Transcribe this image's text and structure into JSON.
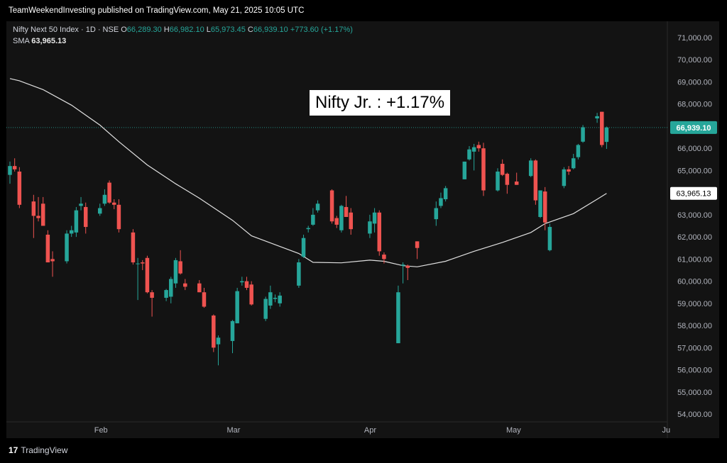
{
  "header": {
    "published": "TeamWeekendInvesting published on TradingView.com, May 21, 2025 10:05 UTC"
  },
  "legend": {
    "symbol": "Nifty Next 50 Index · 1D · NSE",
    "o_label": "O",
    "o_value": "66,289.30",
    "h_label": "H",
    "h_value": "66,982.10",
    "l_label": "L",
    "l_value": "65,973.45",
    "c_label": "C",
    "c_value": "66,939.10",
    "change": "+773.60 (+1.17%)",
    "sma_label": "SMA",
    "sma_value": "63,965.13"
  },
  "annotation": "Nifty Jr. : +1.17%",
  "footer": {
    "brand": "TradingView",
    "logo_glyph": "17"
  },
  "colors": {
    "up": "#26a69a",
    "down": "#ef5350",
    "sma": "#e0e0e0",
    "background": "#131313",
    "price_label_bg": "#26a69a"
  },
  "chart_data": {
    "type": "candlestick",
    "title": "Nifty Next 50 Index · 1D · NSE",
    "x_tick_labels": [
      "Feb",
      "Mar",
      "Apr",
      "May",
      "Ju"
    ],
    "y_tick_labels": [
      "71,000.00",
      "70,000.00",
      "69,000.00",
      "68,000.00",
      "67,000.00",
      "66,000.00",
      "65,000.00",
      "64,000.00",
      "63,000.00",
      "62,000.00",
      "61,000.00",
      "60,000.00",
      "59,000.00",
      "58,000.00",
      "57,000.00",
      "56,000.00",
      "55,000.00",
      "54,000.00"
    ],
    "ylim": [
      53600,
      71500
    ],
    "grid": false,
    "last_price": 66939.1,
    "last_price_label": "66,939.10",
    "sma_last": 63965.13,
    "sma_last_label": "63,965.13",
    "candles": [
      {
        "date": "2025-01-15",
        "o": 64800,
        "h": 65400,
        "l": 64400,
        "c": 65200
      },
      {
        "date": "2025-01-16",
        "o": 65200,
        "h": 65550,
        "l": 64950,
        "c": 65050
      },
      {
        "date": "2025-01-17",
        "o": 64950,
        "h": 65150,
        "l": 63300,
        "c": 63450
      },
      {
        "date": "2025-01-20",
        "o": 63600,
        "h": 63900,
        "l": 61950,
        "c": 62950
      },
      {
        "date": "2025-01-21",
        "o": 62950,
        "h": 63800,
        "l": 62700,
        "c": 62850
      },
      {
        "date": "2025-01-22",
        "o": 63500,
        "h": 63800,
        "l": 62500,
        "c": 62500
      },
      {
        "date": "2025-01-23",
        "o": 62100,
        "h": 62300,
        "l": 60850,
        "c": 60850
      },
      {
        "date": "2025-01-24",
        "o": 61000,
        "h": 61350,
        "l": 60200,
        "c": 60900
      },
      {
        "date": "2025-01-27",
        "o": 60900,
        "h": 62300,
        "l": 60800,
        "c": 62150
      },
      {
        "date": "2025-01-28",
        "o": 62150,
        "h": 62500,
        "l": 62000,
        "c": 62300
      },
      {
        "date": "2025-01-29",
        "o": 62200,
        "h": 63350,
        "l": 62000,
        "c": 63200
      },
      {
        "date": "2025-01-30",
        "o": 63400,
        "h": 63800,
        "l": 63200,
        "c": 63500
      },
      {
        "date": "2025-01-31",
        "o": 63350,
        "h": 63550,
        "l": 62150,
        "c": 62450
      },
      {
        "date": "2025-02-03",
        "o": 63050,
        "h": 63500,
        "l": 62950,
        "c": 63300
      },
      {
        "date": "2025-02-04",
        "o": 63500,
        "h": 64150,
        "l": 63400,
        "c": 63900
      },
      {
        "date": "2025-02-05",
        "o": 64450,
        "h": 64550,
        "l": 63500,
        "c": 63550
      },
      {
        "date": "2025-02-06",
        "o": 63550,
        "h": 63700,
        "l": 63250,
        "c": 63450
      },
      {
        "date": "2025-02-07",
        "o": 63450,
        "h": 63700,
        "l": 62200,
        "c": 62350
      },
      {
        "date": "2025-02-10",
        "o": 62200,
        "h": 62350,
        "l": 60750,
        "c": 60850
      },
      {
        "date": "2025-02-11",
        "o": 60800,
        "h": 61050,
        "l": 59150,
        "c": 60800
      },
      {
        "date": "2025-02-12",
        "o": 60850,
        "h": 60950,
        "l": 60500,
        "c": 60800
      },
      {
        "date": "2025-02-13",
        "o": 61050,
        "h": 61150,
        "l": 59450,
        "c": 59500
      },
      {
        "date": "2025-02-14",
        "o": 59500,
        "h": 59600,
        "l": 58400,
        "c": 59250
      },
      {
        "date": "2025-02-17",
        "o": 59250,
        "h": 59650,
        "l": 59100,
        "c": 59600
      },
      {
        "date": "2025-02-18",
        "o": 59300,
        "h": 60200,
        "l": 59000,
        "c": 60100
      },
      {
        "date": "2025-02-19",
        "o": 59900,
        "h": 61050,
        "l": 59700,
        "c": 60950
      },
      {
        "date": "2025-02-20",
        "o": 60900,
        "h": 61400,
        "l": 60300,
        "c": 60350
      },
      {
        "date": "2025-02-21",
        "o": 59900,
        "h": 60100,
        "l": 59600,
        "c": 59750
      },
      {
        "date": "2025-02-24",
        "o": 59900,
        "h": 60050,
        "l": 59500,
        "c": 59500
      },
      {
        "date": "2025-02-25",
        "o": 59500,
        "h": 59700,
        "l": 58800,
        "c": 58850
      },
      {
        "date": "2025-02-27",
        "o": 58450,
        "h": 58500,
        "l": 56800,
        "c": 57000
      },
      {
        "date": "2025-02-28",
        "o": 57150,
        "h": 57550,
        "l": 56200,
        "c": 57450
      },
      {
        "date": "2025-03-03",
        "o": 57300,
        "h": 58250,
        "l": 56750,
        "c": 58200
      },
      {
        "date": "2025-03-04",
        "o": 58100,
        "h": 59700,
        "l": 58100,
        "c": 59550
      },
      {
        "date": "2025-03-05",
        "o": 59950,
        "h": 60200,
        "l": 59800,
        "c": 60000
      },
      {
        "date": "2025-03-06",
        "o": 60000,
        "h": 60200,
        "l": 59600,
        "c": 59700
      },
      {
        "date": "2025-03-07",
        "o": 59850,
        "h": 60000,
        "l": 58900,
        "c": 58950
      },
      {
        "date": "2025-03-10",
        "o": 58300,
        "h": 59300,
        "l": 58200,
        "c": 59200
      },
      {
        "date": "2025-03-11",
        "o": 58900,
        "h": 59800,
        "l": 58750,
        "c": 59500
      },
      {
        "date": "2025-03-12",
        "o": 59200,
        "h": 59400,
        "l": 59050,
        "c": 59250
      },
      {
        "date": "2025-03-13",
        "o": 59000,
        "h": 59500,
        "l": 58850,
        "c": 59350
      },
      {
        "date": "2025-03-17",
        "o": 59800,
        "h": 61000,
        "l": 59700,
        "c": 60850
      },
      {
        "date": "2025-03-18",
        "o": 61100,
        "h": 62100,
        "l": 61050,
        "c": 61950
      },
      {
        "date": "2025-03-19",
        "o": 62350,
        "h": 62500,
        "l": 62200,
        "c": 62400
      },
      {
        "date": "2025-03-20",
        "o": 62550,
        "h": 63300,
        "l": 62500,
        "c": 63000
      },
      {
        "date": "2025-03-21",
        "o": 63200,
        "h": 63650,
        "l": 63100,
        "c": 63500
      },
      {
        "date": "2025-03-24",
        "o": 64100,
        "h": 64150,
        "l": 62600,
        "c": 62700
      },
      {
        "date": "2025-03-25",
        "o": 62850,
        "h": 62950,
        "l": 62400,
        "c": 62550
      },
      {
        "date": "2025-03-26",
        "o": 62300,
        "h": 63450,
        "l": 62200,
        "c": 63400
      },
      {
        "date": "2025-03-27",
        "o": 63350,
        "h": 63850,
        "l": 62900,
        "c": 62900
      },
      {
        "date": "2025-03-28",
        "o": 63100,
        "h": 63300,
        "l": 62100,
        "c": 62350
      },
      {
        "date": "2025-04-01",
        "o": 62150,
        "h": 63000,
        "l": 61950,
        "c": 62700
      },
      {
        "date": "2025-04-02",
        "o": 62600,
        "h": 63300,
        "l": 62200,
        "c": 63100
      },
      {
        "date": "2025-04-03",
        "o": 63100,
        "h": 63200,
        "l": 61150,
        "c": 61350
      },
      {
        "date": "2025-04-04",
        "o": 61200,
        "h": 61300,
        "l": 60800,
        "c": 61000
      },
      {
        "date": "2025-04-07",
        "o": 57200,
        "h": 59800,
        "l": 57200,
        "c": 59500
      },
      {
        "date": "2025-04-08",
        "o": 60700,
        "h": 60850,
        "l": 59900,
        "c": 60750
      },
      {
        "date": "2025-04-09",
        "o": 60700,
        "h": 60750,
        "l": 60050,
        "c": 60600
      },
      {
        "date": "2025-04-11",
        "o": 61800,
        "h": 61800,
        "l": 61000,
        "c": 61500
      },
      {
        "date": "2025-04-15",
        "o": 62800,
        "h": 63600,
        "l": 62500,
        "c": 63300
      },
      {
        "date": "2025-04-16",
        "o": 63400,
        "h": 64000,
        "l": 63300,
        "c": 63750
      },
      {
        "date": "2025-04-17",
        "o": 63700,
        "h": 64300,
        "l": 63600,
        "c": 64200
      },
      {
        "date": "2025-04-21",
        "o": 64600,
        "h": 65400,
        "l": 64600,
        "c": 65400
      },
      {
        "date": "2025-04-22",
        "o": 65500,
        "h": 66100,
        "l": 65450,
        "c": 65950
      },
      {
        "date": "2025-04-23",
        "o": 65850,
        "h": 66200,
        "l": 65000,
        "c": 66050
      },
      {
        "date": "2025-04-24",
        "o": 66150,
        "h": 66300,
        "l": 65850,
        "c": 66000
      },
      {
        "date": "2025-04-25",
        "o": 66000,
        "h": 66250,
        "l": 63850,
        "c": 64100
      },
      {
        "date": "2025-04-28",
        "o": 64100,
        "h": 65100,
        "l": 64050,
        "c": 64950
      },
      {
        "date": "2025-04-29",
        "o": 65300,
        "h": 65500,
        "l": 64750,
        "c": 64800
      },
      {
        "date": "2025-04-30",
        "o": 64850,
        "h": 64900,
        "l": 63950,
        "c": 64350
      },
      {
        "date": "2025-05-02",
        "o": 64500,
        "h": 64900,
        "l": 64350,
        "c": 64350
      },
      {
        "date": "2025-05-05",
        "o": 64750,
        "h": 65550,
        "l": 64700,
        "c": 65450
      },
      {
        "date": "2025-05-06",
        "o": 65450,
        "h": 65500,
        "l": 63450,
        "c": 63650
      },
      {
        "date": "2025-05-07",
        "o": 62900,
        "h": 64050,
        "l": 62850,
        "c": 64100
      },
      {
        "date": "2025-05-08",
        "o": 64050,
        "h": 64250,
        "l": 62300,
        "c": 62650
      },
      {
        "date": "2025-05-09",
        "o": 61400,
        "h": 62600,
        "l": 61350,
        "c": 62450
      },
      {
        "date": "2025-05-12",
        "o": 64300,
        "h": 65150,
        "l": 64200,
        "c": 65050
      },
      {
        "date": "2025-05-13",
        "o": 65050,
        "h": 65200,
        "l": 64800,
        "c": 64950
      },
      {
        "date": "2025-05-14",
        "o": 65100,
        "h": 65750,
        "l": 65050,
        "c": 65550
      },
      {
        "date": "2025-05-15",
        "o": 65600,
        "h": 66200,
        "l": 65500,
        "c": 66150
      },
      {
        "date": "2025-05-16",
        "o": 66300,
        "h": 67050,
        "l": 66250,
        "c": 66950
      },
      {
        "date": "2025-05-19",
        "o": 67350,
        "h": 67600,
        "l": 67150,
        "c": 67450
      },
      {
        "date": "2025-05-20",
        "o": 67650,
        "h": 67650,
        "l": 66050,
        "c": 66150
      },
      {
        "date": "2025-05-21",
        "o": 66289.3,
        "h": 66982.1,
        "l": 65973.45,
        "c": 66939.1
      }
    ],
    "sma": [
      {
        "date": "2025-01-15",
        "v": 69150
      },
      {
        "date": "2025-01-17",
        "v": 69050
      },
      {
        "date": "2025-01-22",
        "v": 68650
      },
      {
        "date": "2025-01-28",
        "v": 67950
      },
      {
        "date": "2025-02-03",
        "v": 67050
      },
      {
        "date": "2025-02-07",
        "v": 66300
      },
      {
        "date": "2025-02-13",
        "v": 65250
      },
      {
        "date": "2025-02-19",
        "v": 64400
      },
      {
        "date": "2025-02-24",
        "v": 63750
      },
      {
        "date": "2025-03-03",
        "v": 62750
      },
      {
        "date": "2025-03-07",
        "v": 62050
      },
      {
        "date": "2025-03-12",
        "v": 61650
      },
      {
        "date": "2025-03-17",
        "v": 61250
      },
      {
        "date": "2025-03-20",
        "v": 60850
      },
      {
        "date": "2025-03-26",
        "v": 60830
      },
      {
        "date": "2025-04-01",
        "v": 60950
      },
      {
        "date": "2025-04-04",
        "v": 60900
      },
      {
        "date": "2025-04-08",
        "v": 60700
      },
      {
        "date": "2025-04-11",
        "v": 60650
      },
      {
        "date": "2025-04-17",
        "v": 60900
      },
      {
        "date": "2025-04-23",
        "v": 61350
      },
      {
        "date": "2025-04-29",
        "v": 61750
      },
      {
        "date": "2025-05-05",
        "v": 62200
      },
      {
        "date": "2025-05-08",
        "v": 62600
      },
      {
        "date": "2025-05-14",
        "v": 63050
      },
      {
        "date": "2025-05-19",
        "v": 63700
      },
      {
        "date": "2025-05-21",
        "v": 63965.13
      }
    ]
  }
}
